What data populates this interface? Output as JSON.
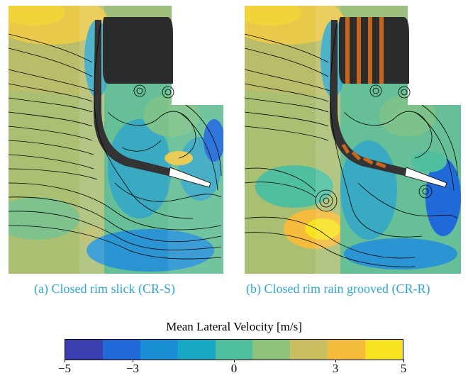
{
  "figure": {
    "panels": [
      {
        "id": "a",
        "caption": "(a) Closed rim slick (CR-S)",
        "tyre": "slick"
      },
      {
        "id": "b",
        "caption": "(b) Closed rim rain grooved (CR-R)",
        "tyre": "rain-grooved"
      }
    ],
    "colorbar": {
      "title": "Mean Lateral Velocity [m/s]",
      "min": -5,
      "max": 5,
      "ticks": [
        "−5",
        "−3",
        "0",
        "3",
        "5"
      ],
      "tick_values": [
        -5,
        -3,
        0,
        3,
        5
      ],
      "colors": [
        "#3a3fb0",
        "#1f6ad8",
        "#1b8fd6",
        "#17a9c3",
        "#4fbf9f",
        "#8cc27a",
        "#c9bf60",
        "#f4bb3c",
        "#f6e21e"
      ]
    },
    "colors": {
      "caption": "#2aa7d6",
      "tyre": "#2b2b2b",
      "groove": "#c8651b",
      "streamline": "#000000"
    }
  }
}
